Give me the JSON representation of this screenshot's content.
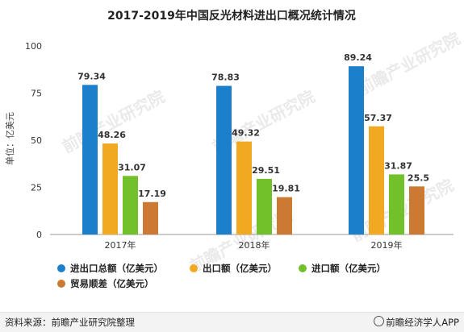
{
  "chart_data": {
    "type": "bar",
    "title": "2017-2019年中国反光材料进出口概况统计情况",
    "ylabel": "单位：亿美元",
    "ylim": [
      0,
      100
    ],
    "yticks": [
      0,
      25,
      50,
      75,
      100
    ],
    "categories": [
      "2017年",
      "2018年",
      "2019年"
    ],
    "series": [
      {
        "name": "进出口总额（亿美元）",
        "color": "#1b7fcb",
        "values": [
          79.34,
          78.83,
          89.24
        ]
      },
      {
        "name": "出口额（亿美元）",
        "color": "#f2a922",
        "values": [
          48.26,
          49.32,
          57.37
        ]
      },
      {
        "name": "进口额（亿美元）",
        "color": "#72c12a",
        "values": [
          31.07,
          29.51,
          31.87
        ]
      },
      {
        "name": "贸易顺差（亿美元）",
        "color": "#cc7a33",
        "values": [
          17.19,
          19.81,
          25.5
        ]
      }
    ],
    "data_labels": [
      [
        "79.34",
        "78.83",
        "89.24"
      ],
      [
        "48.26",
        "49.32",
        "57.37"
      ],
      [
        "31.07",
        "29.51",
        "31.87"
      ],
      [
        "17.19",
        "19.81",
        "25.5"
      ]
    ],
    "grid": false,
    "legend": "bottom-left"
  },
  "watermark": {
    "text": "前瞻产业研究院"
  },
  "footer": {
    "source": "资料来源：前瞻产业研究院整理",
    "brand": "前瞻经济学人APP"
  }
}
